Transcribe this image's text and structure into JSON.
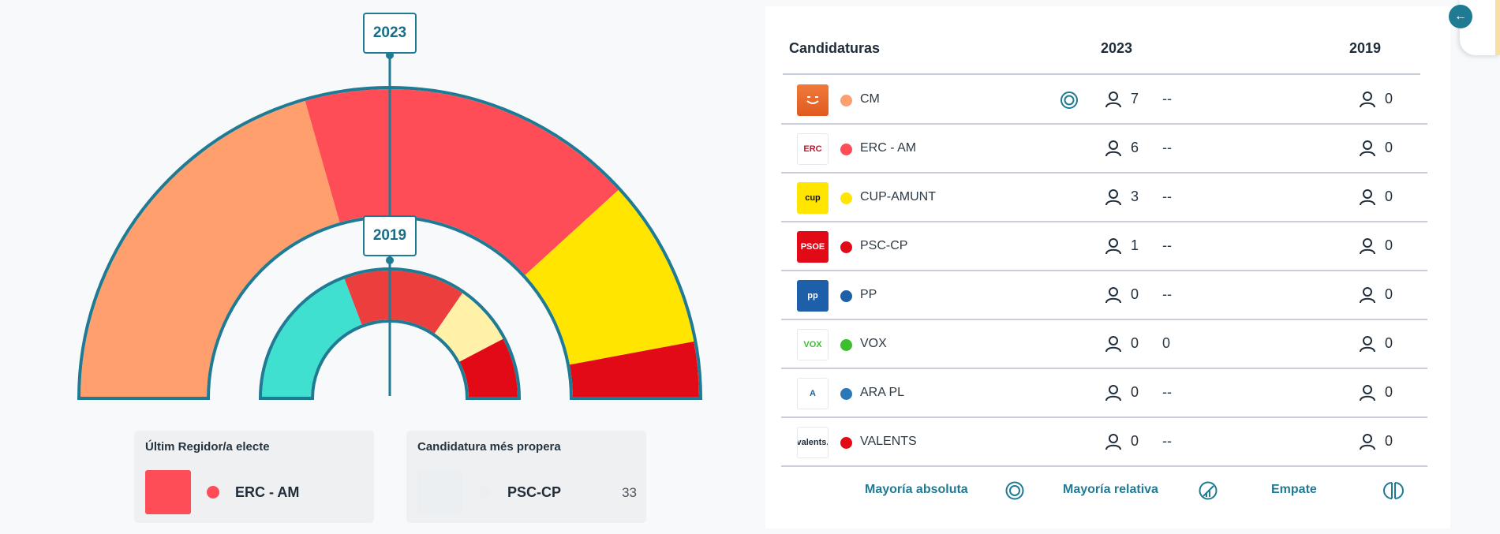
{
  "hemicycle": {
    "outer_label": "2023",
    "inner_label": "2019",
    "outer_segments": [
      {
        "party": "CM",
        "seats": 7,
        "color": "#fe9f6d"
      },
      {
        "party": "ERC - AM",
        "seats": 6,
        "color": "#ff4d57"
      },
      {
        "party": "CUP-AMUNT",
        "seats": 3,
        "color": "#ffe500"
      },
      {
        "party": "PSC-CP",
        "seats": 1,
        "color": "#e20a16"
      }
    ],
    "inner_segments": [
      {
        "seats": 5,
        "color": "#40e0d0"
      },
      {
        "seats": 4,
        "color": "#ed3e3e"
      },
      {
        "seats": 2,
        "color": "#fff1a8"
      },
      {
        "seats": 2,
        "color": "#e20a16"
      }
    ],
    "outline_color": "#1f7a93"
  },
  "last_elected": {
    "title": "Últim Regidor/a electe",
    "party": "ERC - AM",
    "color": "#ff4d57"
  },
  "nearest": {
    "title": "Candidatura més propera",
    "party": "PSC-CP",
    "value": "33",
    "color": "#eceff1"
  },
  "table": {
    "headers": {
      "candidatures": "Candidaturas",
      "y2023": "2023",
      "y2019": "2019"
    },
    "rows": [
      {
        "name": "CM",
        "color": "#fe9f6d",
        "seats_2023": "7",
        "diff": "--",
        "seats_2019": "0",
        "majority_icon": "absolute-majority-icon",
        "logo": {
          "bg": "#e8612c",
          "text": "",
          "fg": "#fff"
        }
      },
      {
        "name": "ERC - AM",
        "color": "#ff4d57",
        "seats_2023": "6",
        "diff": "--",
        "seats_2019": "0",
        "logo": {
          "bg": "#ffffff",
          "text": "ERC",
          "fg": "#c8102e"
        }
      },
      {
        "name": "CUP-AMUNT",
        "color": "#ffe500",
        "seats_2023": "3",
        "diff": "--",
        "seats_2019": "0",
        "logo": {
          "bg": "#ffe500",
          "text": "cup",
          "fg": "#111"
        }
      },
      {
        "name": "PSC-CP",
        "color": "#e20a16",
        "seats_2023": "1",
        "diff": "--",
        "seats_2019": "0",
        "logo": {
          "bg": "#e20a16",
          "text": "PSOE",
          "fg": "#fff"
        }
      },
      {
        "name": "PP",
        "color": "#1d5fa8",
        "seats_2023": "0",
        "diff": "--",
        "seats_2019": "0",
        "logo": {
          "bg": "#1d5fa8",
          "text": "pp",
          "fg": "#fff"
        }
      },
      {
        "name": "VOX",
        "color": "#3cbf2f",
        "seats_2023": "0",
        "diff": "0",
        "seats_2019": "0",
        "logo": {
          "bg": "#ffffff",
          "text": "VOX",
          "fg": "#3cbf2f"
        }
      },
      {
        "name": "ARA PL",
        "color": "#2a78b8",
        "seats_2023": "0",
        "diff": "--",
        "seats_2019": "0",
        "logo": {
          "bg": "#ffffff",
          "text": "A",
          "fg": "#1d5fa8"
        }
      },
      {
        "name": "VALENTS",
        "color": "#e20a16",
        "seats_2023": "0",
        "diff": "--",
        "seats_2019": "0",
        "logo": {
          "bg": "#ffffff",
          "text": "valents.",
          "fg": "#1f2d3a"
        }
      }
    ]
  },
  "legend": {
    "absolute": "Mayoría absoluta",
    "relative": "Mayoría relativa",
    "tie": "Empate"
  },
  "back_button": {
    "icon": "arrow-left-icon",
    "glyph": "←"
  }
}
